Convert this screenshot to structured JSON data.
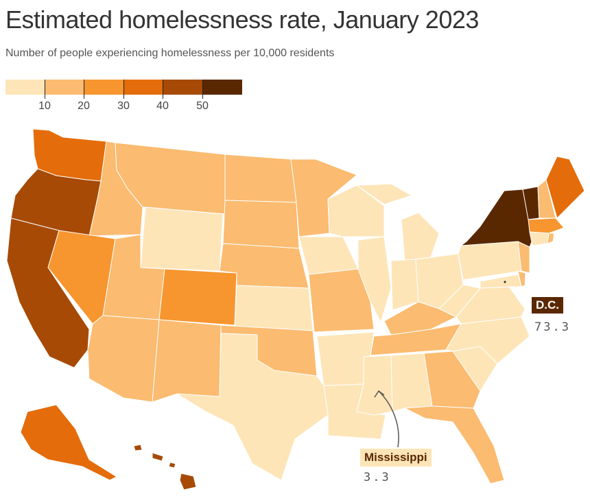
{
  "title": "Estimated homelessness rate, January 2023",
  "subtitle": "Number of people experiencing homelessness per 10,000 residents",
  "legend": {
    "bins": [
      "#fde5b8",
      "#fbbb70",
      "#f7952f",
      "#e46c0a",
      "#a64a06",
      "#5a2800"
    ],
    "ticks": [
      "10",
      "20",
      "30",
      "40",
      "50"
    ]
  },
  "colors": {
    "bin0": "#fde5b8",
    "bin1": "#fbbb70",
    "bin2": "#f7952f",
    "bin3": "#e46c0a",
    "bin4": "#a64a06",
    "bin5": "#5a2800"
  },
  "callouts": {
    "dc": {
      "name": "D.C.",
      "value": "73.3"
    },
    "ms": {
      "name": "Mississippi",
      "value": "3.3"
    }
  }
}
